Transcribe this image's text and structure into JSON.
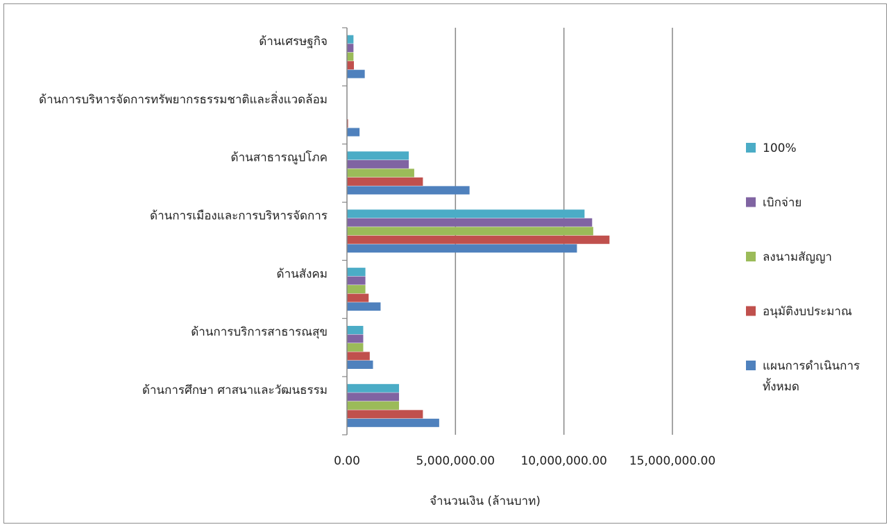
{
  "chart_data": {
    "type": "bar",
    "orientation": "horizontal",
    "categories": [
      "ด้านเศรษฐกิจ",
      "ด้านการบริหารจัดการทรัพยากรธรรมชาติและสิ่งแวดล้อม",
      "ด้านสาธารณูปโภค",
      "ด้านการเมืองและการบริหารจัดการ",
      "ด้านสังคม",
      "ด้านการบริการสาธารณสุข",
      "ด้านการศึกษา ศาสนาและวัฒนธรรม"
    ],
    "series": [
      {
        "name": "100%",
        "color": "#4bacc6",
        "values": [
          300000,
          0,
          2850000,
          10950000,
          850000,
          750000,
          2400000
        ]
      },
      {
        "name": "เบิกจ่าย",
        "color": "#8064a2",
        "values": [
          300000,
          0,
          2850000,
          11300000,
          850000,
          750000,
          2400000
        ]
      },
      {
        "name": "ลงนามสัญญา",
        "color": "#9bbb59",
        "values": [
          300000,
          0,
          3100000,
          11350000,
          850000,
          750000,
          2400000
        ]
      },
      {
        "name": "อนุมัติงบประมาณ",
        "color": "#c0504d",
        "values": [
          320000,
          50000,
          3500000,
          12100000,
          1000000,
          1050000,
          3500000
        ]
      },
      {
        "name": "แผนการดำเนินการทั้งหมด",
        "color": "#4f81bd",
        "values": [
          820000,
          580000,
          5650000,
          10600000,
          1550000,
          1200000,
          4250000
        ]
      }
    ],
    "legend_order": [
      0,
      1,
      2,
      3,
      4
    ],
    "legend_labels": [
      "100%",
      "เบิกจ่าย",
      "ลงนามสัญญา",
      "อนุมัติงบประมาณ",
      [
        "แผนการดำเนินการ",
        "ทั้งหมด"
      ]
    ],
    "xlim": [
      0,
      15000000
    ],
    "xticks": [
      0,
      5000000,
      10000000,
      15000000
    ],
    "xtick_labels": [
      "0.00",
      "5,000,000.00",
      "10,000,000.00",
      "15,000,000.00"
    ],
    "xlabel": "จำนวนเงิน (ล้านบาท)",
    "grid": "vertical",
    "legend_position": "right"
  }
}
